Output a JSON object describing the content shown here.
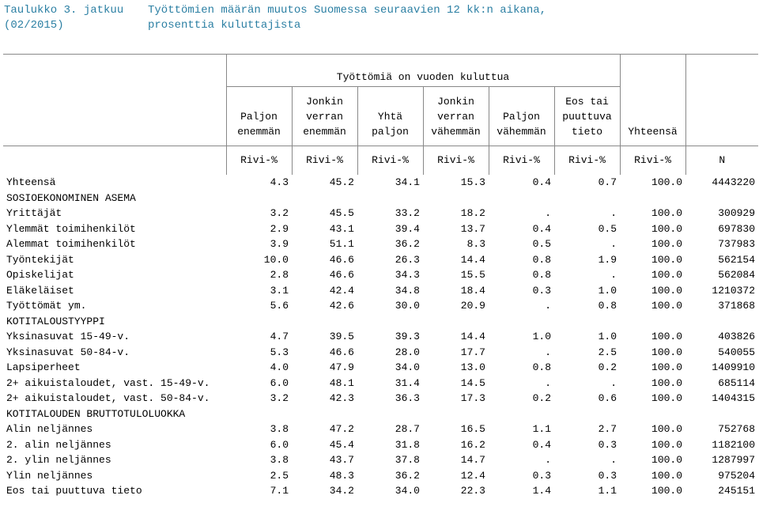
{
  "title": {
    "line1_left": "Taulukko 3. jatkuu",
    "line1_right": "Työttömien määrän muutos Suomessa seuraavien 12 kk:n aikana,",
    "line2_left": "(02/2015)",
    "line2_right": "prosenttia kuluttajista"
  },
  "table": {
    "group_header": "Työttömiä on vuoden kuluttua",
    "columns": [
      {
        "l1": "",
        "l2": "Paljon",
        "l3": "enemmän"
      },
      {
        "l1": "Jonkin",
        "l2": "verran",
        "l3": "enemmän"
      },
      {
        "l1": "",
        "l2": "Yhtä",
        "l3": "paljon"
      },
      {
        "l1": "Jonkin",
        "l2": "verran",
        "l3": "vähemmän"
      },
      {
        "l1": "",
        "l2": "Paljon",
        "l3": "vähemmän"
      },
      {
        "l1": "Eos tai",
        "l2": "puuttuva",
        "l3": "tieto"
      },
      {
        "l1": "",
        "l2": "",
        "l3": "Yhteensä"
      },
      {
        "l1": "",
        "l2": "",
        "l3": ""
      }
    ],
    "units": [
      "Rivi-%",
      "Rivi-%",
      "Rivi-%",
      "Rivi-%",
      "Rivi-%",
      "Rivi-%",
      "Rivi-%",
      "N"
    ],
    "rows": [
      {
        "label": "Yhteensä",
        "v": [
          "4.3",
          "45.2",
          "34.1",
          "15.3",
          "0.4",
          "0.7",
          "100.0",
          "4443220"
        ]
      },
      {
        "label": "SOSIOEKONOMINEN ASEMA",
        "v": [
          "",
          "",
          "",
          "",
          "",
          "",
          "",
          ""
        ]
      },
      {
        "label": "Yrittäjät",
        "v": [
          "3.2",
          "45.5",
          "33.2",
          "18.2",
          ".",
          ".",
          "100.0",
          "300929"
        ]
      },
      {
        "label": "Ylemmät toimihenkilöt",
        "v": [
          "2.9",
          "43.1",
          "39.4",
          "13.7",
          "0.4",
          "0.5",
          "100.0",
          "697830"
        ]
      },
      {
        "label": "Alemmat toimihenkilöt",
        "v": [
          "3.9",
          "51.1",
          "36.2",
          "8.3",
          "0.5",
          ".",
          "100.0",
          "737983"
        ]
      },
      {
        "label": "Työntekijät",
        "v": [
          "10.0",
          "46.6",
          "26.3",
          "14.4",
          "0.8",
          "1.9",
          "100.0",
          "562154"
        ]
      },
      {
        "label": "Opiskelijat",
        "v": [
          "2.8",
          "46.6",
          "34.3",
          "15.5",
          "0.8",
          ".",
          "100.0",
          "562084"
        ]
      },
      {
        "label": "Eläkeläiset",
        "v": [
          "3.1",
          "42.4",
          "34.8",
          "18.4",
          "0.3",
          "1.0",
          "100.0",
          "1210372"
        ]
      },
      {
        "label": "Työttömät ym.",
        "v": [
          "5.6",
          "42.6",
          "30.0",
          "20.9",
          ".",
          "0.8",
          "100.0",
          "371868"
        ]
      },
      {
        "label": "KOTITALOUSTYYPPI",
        "v": [
          "",
          "",
          "",
          "",
          "",
          "",
          "",
          ""
        ]
      },
      {
        "label": "Yksinasuvat 15-49-v.",
        "v": [
          "4.7",
          "39.5",
          "39.3",
          "14.4",
          "1.0",
          "1.0",
          "100.0",
          "403826"
        ]
      },
      {
        "label": "Yksinasuvat 50-84-v.",
        "v": [
          "5.3",
          "46.6",
          "28.0",
          "17.7",
          ".",
          "2.5",
          "100.0",
          "540055"
        ]
      },
      {
        "label": "Lapsiperheet",
        "v": [
          "4.0",
          "47.9",
          "34.0",
          "13.0",
          "0.8",
          "0.2",
          "100.0",
          "1409910"
        ]
      },
      {
        "label": "2+ aikuistaloudet, vast. 15-49-v.",
        "v": [
          "6.0",
          "48.1",
          "31.4",
          "14.5",
          ".",
          ".",
          "100.0",
          "685114"
        ]
      },
      {
        "label": "2+ aikuistaloudet, vast. 50-84-v.",
        "v": [
          "3.2",
          "42.3",
          "36.3",
          "17.3",
          "0.2",
          "0.6",
          "100.0",
          "1404315"
        ]
      },
      {
        "label": "KOTITALOUDEN BRUTTOTULOLUOKKA",
        "v": [
          "",
          "",
          "",
          "",
          "",
          "",
          "",
          ""
        ]
      },
      {
        "label": "Alin neljännes",
        "v": [
          "3.8",
          "47.2",
          "28.7",
          "16.5",
          "1.1",
          "2.7",
          "100.0",
          "752768"
        ]
      },
      {
        "label": "2. alin neljännes",
        "v": [
          "6.0",
          "45.4",
          "31.8",
          "16.2",
          "0.4",
          "0.3",
          "100.0",
          "1182100"
        ]
      },
      {
        "label": "2. ylin neljännes",
        "v": [
          "3.8",
          "43.7",
          "37.8",
          "14.7",
          ".",
          ".",
          "100.0",
          "1287997"
        ]
      },
      {
        "label": "Ylin neljännes",
        "v": [
          "2.5",
          "48.3",
          "36.2",
          "12.4",
          "0.3",
          "0.3",
          "100.0",
          "975204"
        ]
      },
      {
        "label": "Eos tai puuttuva tieto",
        "v": [
          "7.1",
          "34.2",
          "34.0",
          "22.3",
          "1.4",
          "1.1",
          "100.0",
          "245151"
        ]
      }
    ]
  }
}
